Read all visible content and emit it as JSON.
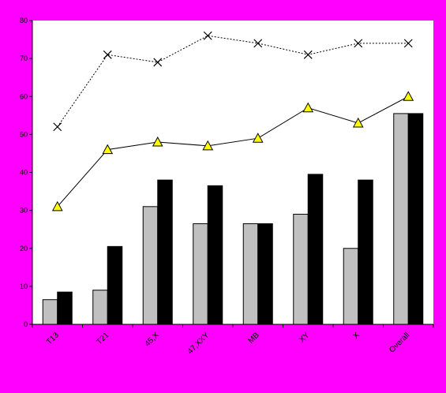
{
  "chart_data": {
    "type": "bar",
    "title": "",
    "xlabel": "",
    "ylabel": "",
    "ylim": [
      0,
      80
    ],
    "yticks": [
      0,
      10,
      20,
      30,
      40,
      50,
      60,
      70,
      80
    ],
    "grid": false,
    "legend": "none",
    "categories": [
      "T13",
      "T21",
      "45,X",
      "47,XXY",
      "MB",
      "XY",
      "X",
      "Overall"
    ],
    "series": [
      {
        "kind": "bar",
        "values": [
          6.5,
          9,
          31,
          26.5,
          26.5,
          29,
          20,
          55.5
        ],
        "color": "#c0c0c0"
      },
      {
        "kind": "bar",
        "values": [
          8.5,
          20.5,
          38,
          36.5,
          26.5,
          39.5,
          38,
          55.5
        ],
        "color": "#000000"
      },
      {
        "kind": "line",
        "values": [
          31,
          46,
          48,
          47,
          49,
          57,
          53,
          60
        ],
        "marker": "triangle",
        "color": "#ffff00",
        "line_style": "solid"
      },
      {
        "kind": "line",
        "values": [
          52,
          71,
          69,
          76,
          74,
          71,
          74,
          74
        ],
        "marker": "x",
        "color": "#000000",
        "line_style": "dotted"
      }
    ],
    "plot_background": "#ffffff",
    "page_background": "#ff00ff"
  }
}
